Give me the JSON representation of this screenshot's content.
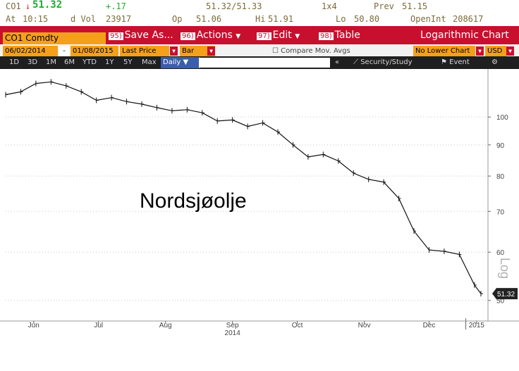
{
  "quote": {
    "ticker": "CO1",
    "arrow": "↓",
    "last": "51.32",
    "change": "+.17",
    "bidask": "51.32/51.33",
    "size": "1x4",
    "prev_label": "Prev",
    "prev": "51.15",
    "at_label": "At",
    "time": "10:15",
    "dvol_label": "d Vol",
    "dvol": "23917",
    "op_label": "Op",
    "op": "51.06",
    "hi_label": "Hi",
    "hi": "51.91",
    "lo_label": "Lo",
    "lo": "50.80",
    "openint_label": "OpenInt",
    "openint": "208617"
  },
  "toolbar": {
    "security": "CO1 Comdty",
    "save": {
      "num": "95)",
      "label": "Save As..."
    },
    "actions": {
      "num": "96)",
      "label": "Actions"
    },
    "edit": {
      "num": "97)",
      "label": "Edit"
    },
    "table": {
      "num": "98)",
      "label": "Table"
    },
    "chart_title": "Logarithmic Chart"
  },
  "controls": {
    "start_date": "06/02/2014",
    "dash": "-",
    "end_date": "01/08/2015",
    "field": "Last Price",
    "style": "Bar",
    "compare": "Compare Mov. Avgs",
    "lower_chart": "No Lower Chart",
    "currency": "USD"
  },
  "periods": {
    "items": [
      "1D",
      "3D",
      "1M",
      "6M",
      "YTD",
      "1Y",
      "5Y",
      "Max"
    ],
    "selected": "Daily",
    "security_study": "Security/Study",
    "event": "Event"
  },
  "chart_data": {
    "type": "line",
    "scale": "log",
    "annotation": "Nordsjøolje",
    "axis_caption": "Log",
    "ylim": [
      47,
      118
    ],
    "yticks": [
      100,
      90,
      80,
      70,
      60,
      50
    ],
    "last_value_label": "51.32",
    "x_month_labels": [
      "Jun",
      "Jul",
      "Aug",
      "Sep",
      "Oct",
      "Nov",
      "Dec",
      "2015"
    ],
    "x_year_label": "2014",
    "x": [
      "2014-06-02",
      "2014-06-09",
      "2014-06-16",
      "2014-06-23",
      "2014-06-30",
      "2014-07-07",
      "2014-07-14",
      "2014-07-21",
      "2014-07-28",
      "2014-08-04",
      "2014-08-11",
      "2014-08-18",
      "2014-08-25",
      "2014-09-01",
      "2014-09-08",
      "2014-09-15",
      "2014-09-22",
      "2014-09-29",
      "2014-10-06",
      "2014-10-13",
      "2014-10-20",
      "2014-10-27",
      "2014-11-03",
      "2014-11-10",
      "2014-11-17",
      "2014-11-24",
      "2014-12-01",
      "2014-12-08",
      "2014-12-15",
      "2014-12-22",
      "2014-12-29",
      "2015-01-05",
      "2015-01-08"
    ],
    "y": [
      108.8,
      110.0,
      113.5,
      114.2,
      112.5,
      110.0,
      106.5,
      107.6,
      106.0,
      105.0,
      103.6,
      102.4,
      102.8,
      101.6,
      98.5,
      98.9,
      96.5,
      97.8,
      94.5,
      90.0,
      86.0,
      86.8,
      84.7,
      80.9,
      79.0,
      78.2,
      73.5,
      65.0,
      60.5,
      60.2,
      59.5,
      53.0,
      51.3
    ]
  }
}
